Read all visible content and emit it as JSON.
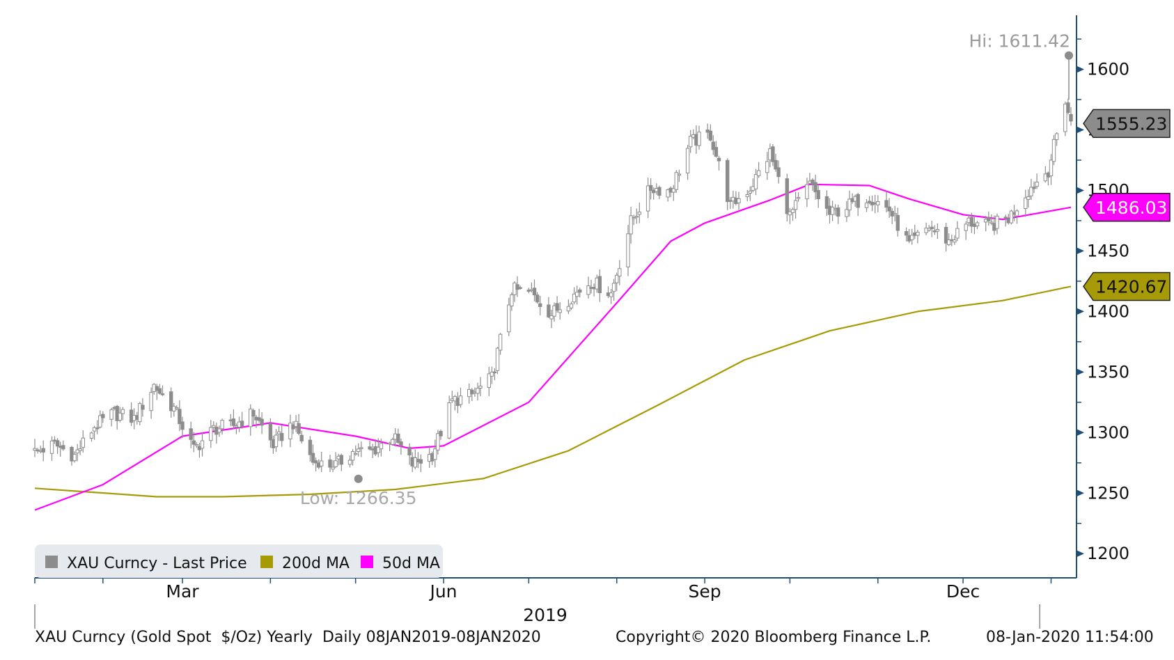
{
  "chart_data": {
    "type": "candlestick",
    "title": "",
    "security": "XAU Curncy",
    "ylim": [
      1180,
      1640
    ],
    "y_ticks": [
      1200,
      1250,
      1300,
      1350,
      1400,
      1450,
      1500,
      1550,
      1600
    ],
    "x_range": [
      "2019-01-08",
      "2020-01-08"
    ],
    "x_labels": [
      {
        "label": "Mar",
        "date": "2019-03-01"
      },
      {
        "label": "Jun",
        "date": "2019-06-01"
      },
      {
        "label": "Sep",
        "date": "2019-09-01"
      },
      {
        "label": "Dec",
        "date": "2019-12-01"
      }
    ],
    "x_ticks": [
      "2019-01-08",
      "2019-02-01",
      "2019-03-01",
      "2019-04-01",
      "2019-05-01",
      "2019-06-01",
      "2019-07-01",
      "2019-08-01",
      "2019-09-01",
      "2019-10-01",
      "2019-11-01",
      "2019-12-01",
      "2020-01-01"
    ],
    "year_label": "2019",
    "grid": false,
    "legend_position": "bottom-left",
    "series": [
      {
        "name": "XAU Curncy - Last Price",
        "kind": "candlestick",
        "color": "#8c8c8c",
        "close": [
          {
            "date": "2019-01-08",
            "value": 1284
          },
          {
            "date": "2019-01-15",
            "value": 1290
          },
          {
            "date": "2019-01-22",
            "value": 1281
          },
          {
            "date": "2019-01-29",
            "value": 1305
          },
          {
            "date": "2019-02-05",
            "value": 1316
          },
          {
            "date": "2019-02-12",
            "value": 1311
          },
          {
            "date": "2019-02-19",
            "value": 1339
          },
          {
            "date": "2019-02-26",
            "value": 1320
          },
          {
            "date": "2019-03-05",
            "value": 1286
          },
          {
            "date": "2019-03-12",
            "value": 1303
          },
          {
            "date": "2019-03-19",
            "value": 1306
          },
          {
            "date": "2019-03-26",
            "value": 1316
          },
          {
            "date": "2019-04-02",
            "value": 1290
          },
          {
            "date": "2019-04-09",
            "value": 1308
          },
          {
            "date": "2019-04-16",
            "value": 1276
          },
          {
            "date": "2019-04-23",
            "value": 1271
          },
          {
            "date": "2019-04-30",
            "value": 1284
          },
          {
            "date": "2019-05-07",
            "value": 1285
          },
          {
            "date": "2019-05-14",
            "value": 1297
          },
          {
            "date": "2019-05-21",
            "value": 1274
          },
          {
            "date": "2019-05-28",
            "value": 1282
          },
          {
            "date": "2019-06-04",
            "value": 1326
          },
          {
            "date": "2019-06-11",
            "value": 1331
          },
          {
            "date": "2019-06-18",
            "value": 1345
          },
          {
            "date": "2019-06-25",
            "value": 1418
          },
          {
            "date": "2019-07-02",
            "value": 1415
          },
          {
            "date": "2019-07-09",
            "value": 1398
          },
          {
            "date": "2019-07-16",
            "value": 1412
          },
          {
            "date": "2019-07-23",
            "value": 1425
          },
          {
            "date": "2019-07-30",
            "value": 1415
          },
          {
            "date": "2019-08-06",
            "value": 1474
          },
          {
            "date": "2019-08-13",
            "value": 1502
          },
          {
            "date": "2019-08-20",
            "value": 1500
          },
          {
            "date": "2019-08-27",
            "value": 1540
          },
          {
            "date": "2019-09-03",
            "value": 1546
          },
          {
            "date": "2019-09-10",
            "value": 1487
          },
          {
            "date": "2019-09-17",
            "value": 1502
          },
          {
            "date": "2019-09-24",
            "value": 1531
          },
          {
            "date": "2019-10-01",
            "value": 1479
          },
          {
            "date": "2019-10-08",
            "value": 1505
          },
          {
            "date": "2019-10-15",
            "value": 1480
          },
          {
            "date": "2019-10-22",
            "value": 1488
          },
          {
            "date": "2019-10-29",
            "value": 1495
          },
          {
            "date": "2019-11-05",
            "value": 1484
          },
          {
            "date": "2019-11-12",
            "value": 1455
          },
          {
            "date": "2019-11-19",
            "value": 1470
          },
          {
            "date": "2019-11-26",
            "value": 1458
          },
          {
            "date": "2019-12-03",
            "value": 1474
          },
          {
            "date": "2019-12-10",
            "value": 1470
          },
          {
            "date": "2019-12-17",
            "value": 1477
          },
          {
            "date": "2019-12-24",
            "value": 1500
          },
          {
            "date": "2019-12-31",
            "value": 1517
          },
          {
            "date": "2020-01-06",
            "value": 1575
          },
          {
            "date": "2020-01-08",
            "value": 1555
          }
        ],
        "last_value": 1555.23,
        "last_label": "1555.23",
        "high": {
          "date": "2020-01-08",
          "value": 1611.42,
          "label": "Hi: 1611.42"
        },
        "low": {
          "date": "2019-05-02",
          "value": 1266.35,
          "label": "Low: 1266.35"
        }
      },
      {
        "name": "200d MA",
        "kind": "line",
        "color": "#a79a07",
        "points": [
          {
            "date": "2019-01-08",
            "value": 1254
          },
          {
            "date": "2019-02-20",
            "value": 1247
          },
          {
            "date": "2019-03-15",
            "value": 1247
          },
          {
            "date": "2019-04-15",
            "value": 1249
          },
          {
            "date": "2019-05-15",
            "value": 1253
          },
          {
            "date": "2019-06-15",
            "value": 1262
          },
          {
            "date": "2019-07-15",
            "value": 1285
          },
          {
            "date": "2019-08-15",
            "value": 1322
          },
          {
            "date": "2019-09-15",
            "value": 1360
          },
          {
            "date": "2019-10-15",
            "value": 1384
          },
          {
            "date": "2019-11-15",
            "value": 1400
          },
          {
            "date": "2019-12-15",
            "value": 1409
          },
          {
            "date": "2020-01-08",
            "value": 1420.67
          }
        ],
        "last_value": 1420.67,
        "last_label": "1420.67"
      },
      {
        "name": "50d MA",
        "kind": "line",
        "color": "#ff00ff",
        "points": [
          {
            "date": "2019-01-08",
            "value": 1236
          },
          {
            "date": "2019-02-01",
            "value": 1257
          },
          {
            "date": "2019-03-01",
            "value": 1297
          },
          {
            "date": "2019-04-01",
            "value": 1308
          },
          {
            "date": "2019-05-01",
            "value": 1297
          },
          {
            "date": "2019-05-20",
            "value": 1287
          },
          {
            "date": "2019-06-01",
            "value": 1289
          },
          {
            "date": "2019-07-01",
            "value": 1325
          },
          {
            "date": "2019-08-01",
            "value": 1407
          },
          {
            "date": "2019-08-20",
            "value": 1458
          },
          {
            "date": "2019-09-01",
            "value": 1473
          },
          {
            "date": "2019-09-24",
            "value": 1492
          },
          {
            "date": "2019-10-08",
            "value": 1505
          },
          {
            "date": "2019-10-29",
            "value": 1504
          },
          {
            "date": "2019-11-12",
            "value": 1493
          },
          {
            "date": "2019-12-01",
            "value": 1480
          },
          {
            "date": "2019-12-15",
            "value": 1476
          },
          {
            "date": "2020-01-08",
            "value": 1486.03
          }
        ],
        "last_value": 1486.03,
        "last_label": "1486.03"
      }
    ]
  },
  "footer": {
    "left": "XAU Curncy (Gold Spot  $/Oz) Yearly  Daily 08JAN2019-08JAN2020",
    "center": "Copyright© 2020 Bloomberg Finance L.P.",
    "right": "08-Jan-2020 11:54:00"
  }
}
